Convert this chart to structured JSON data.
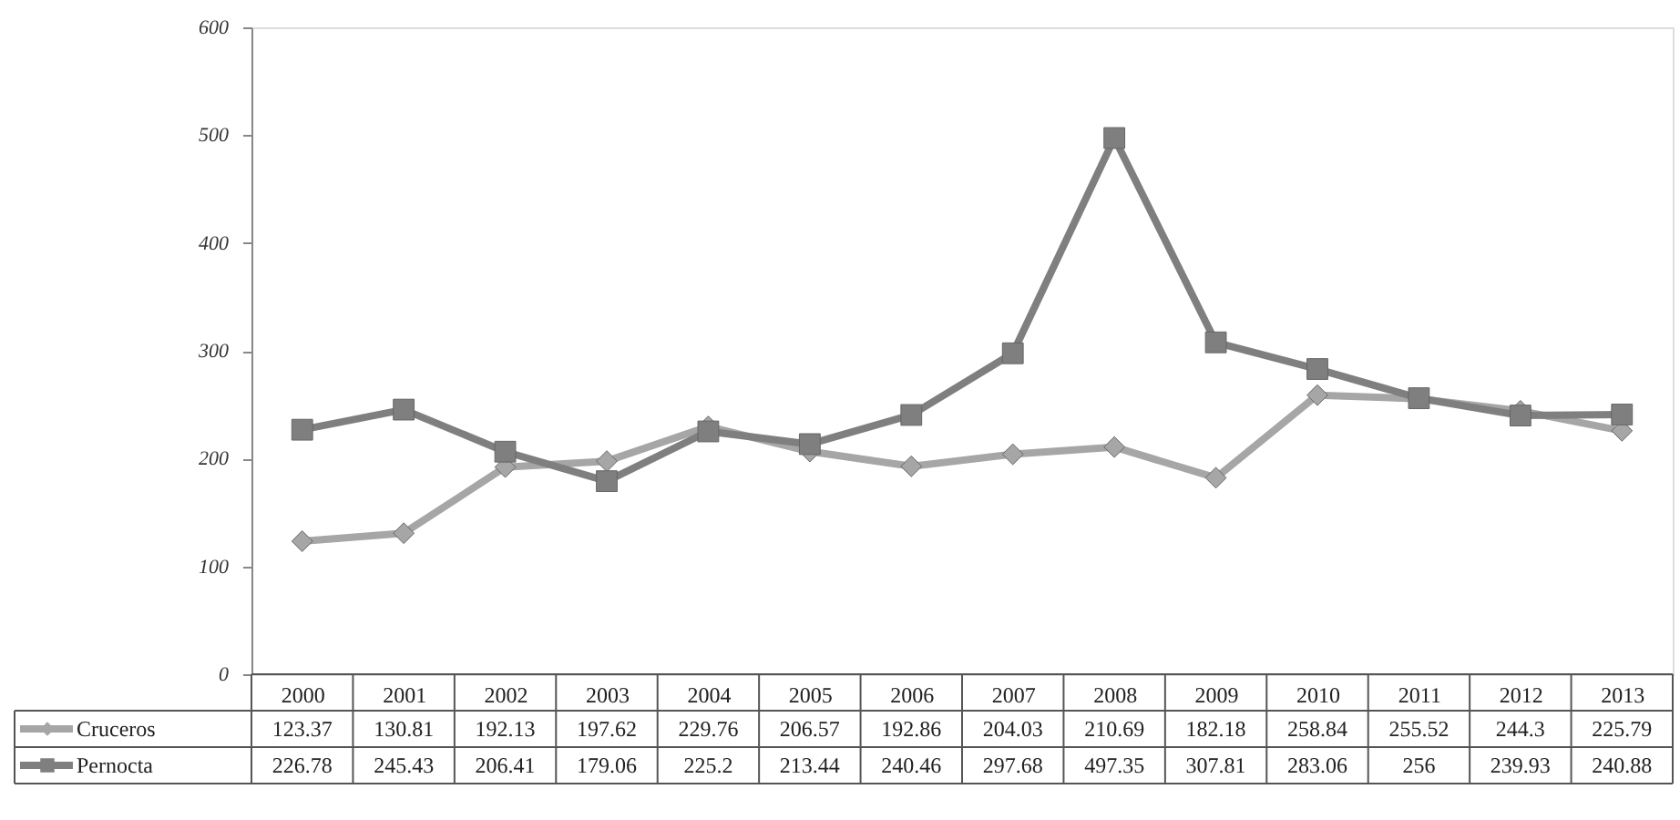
{
  "chart_data": {
    "type": "line",
    "categories": [
      "2000",
      "2001",
      "2002",
      "2003",
      "2004",
      "2005",
      "2006",
      "2007",
      "2008",
      "2009",
      "2010",
      "2011",
      "2012",
      "2013"
    ],
    "series": [
      {
        "name": "Cruceros",
        "color": "#a6a6a6",
        "marker": "diamond",
        "values": [
          123.37,
          130.81,
          192.13,
          197.62,
          229.76,
          206.57,
          192.86,
          204.03,
          210.69,
          182.18,
          258.84,
          255.52,
          244.3,
          225.79
        ]
      },
      {
        "name": "Pernocta",
        "color": "#7f7f7f",
        "marker": "square",
        "values": [
          226.78,
          245.43,
          206.41,
          179.06,
          225.2,
          213.44,
          240.46,
          297.68,
          497.35,
          307.81,
          283.06,
          256,
          239.93,
          240.88
        ]
      }
    ],
    "ylim": [
      0,
      600
    ],
    "yticks": [
      0,
      100,
      200,
      300,
      400,
      500,
      600
    ],
    "grid": false,
    "legend": "bottom left",
    "data_labels": true,
    "line_style": "solid"
  }
}
